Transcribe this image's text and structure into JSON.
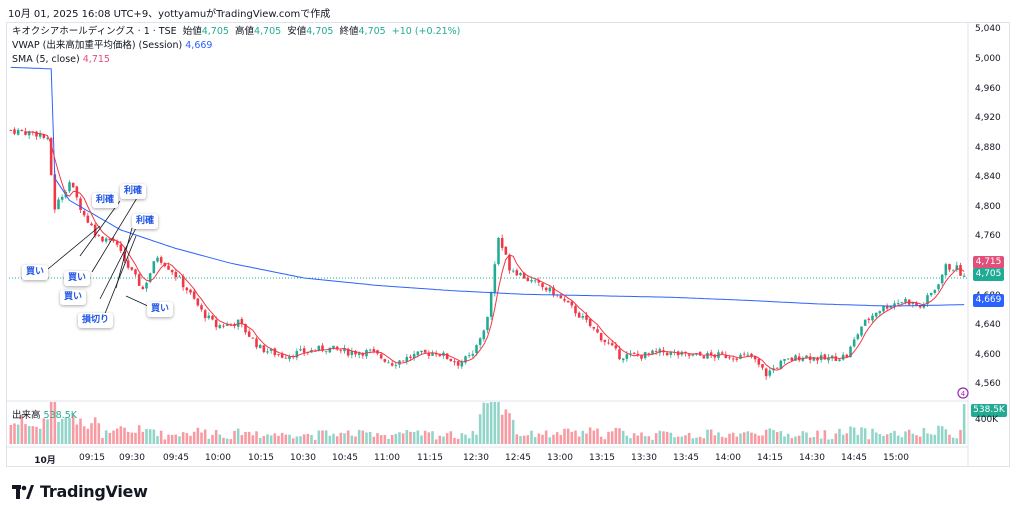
{
  "caption": "10月 01, 2025 16:08 UTC+9、yottyamuがTradingView.comで作成",
  "legend": {
    "symbol": "キオクシアホールディングス · 1 · TSE",
    "open_label": "始値",
    "open": "4,705",
    "high_label": "高値",
    "high": "4,705",
    "low_label": "安値",
    "low": "4,705",
    "close_label": "終値",
    "close": "4,705",
    "change": "+10 (+0.21%)",
    "vwap_label": "VWAP (出来高加重平均価格) (Session)",
    "vwap_value": "4,669",
    "sma_label": "SMA (5, close)",
    "sma_value": "4,715"
  },
  "volume_legend": {
    "label": "出来高",
    "value": "538.5K"
  },
  "colors": {
    "up": "#22ab94",
    "down": "#f23645",
    "vwap": "#2962ff",
    "sma": "#f23645",
    "sma_tag": "#e0507a",
    "last": "#22ab94",
    "vwap_tag": "#2962ff"
  },
  "brand": {
    "name": "TradingView"
  },
  "annotations": [
    "買い",
    "利確",
    "買い",
    "利確",
    "買い",
    "利確",
    "損切り",
    "買い"
  ],
  "chart_data": {
    "type": "candlestick",
    "ylim": [
      4540,
      5050
    ],
    "y_ticks": [
      "5,040",
      "5,000",
      "4,960",
      "4,920",
      "4,880",
      "4,840",
      "4,800",
      "4,760",
      "4,720",
      "4,680",
      "4,640",
      "4,600",
      "4,560"
    ],
    "y_tick_values": [
      5040,
      5000,
      4960,
      4920,
      4880,
      4840,
      4800,
      4760,
      4720,
      4680,
      4640,
      4600,
      4560
    ],
    "x_ticks": [
      "10月",
      "09:15",
      "09:30",
      "09:45",
      "10:00",
      "10:15",
      "10:30",
      "10:45",
      "11:00",
      "11:15",
      "12:30",
      "12:45",
      "13:00",
      "13:15",
      "13:30",
      "13:45",
      "14:00",
      "14:15",
      "14:30",
      "14:45",
      "15:00"
    ],
    "price_labels": {
      "sma": "4,715",
      "last": "4,705",
      "vwap": "4,669",
      "volume": "538.5K",
      "volume_axis": "400K"
    },
    "series_close_keypoints": [
      [
        0,
        4905
      ],
      [
        8,
        4900
      ],
      [
        10,
        4890
      ],
      [
        12,
        4800
      ],
      [
        16,
        4835
      ],
      [
        20,
        4790
      ],
      [
        24,
        4760
      ],
      [
        28,
        4755
      ],
      [
        32,
        4720
      ],
      [
        36,
        4690
      ],
      [
        40,
        4735
      ],
      [
        44,
        4715
      ],
      [
        48,
        4690
      ],
      [
        52,
        4660
      ],
      [
        56,
        4640
      ],
      [
        62,
        4645
      ],
      [
        68,
        4610
      ],
      [
        74,
        4600
      ],
      [
        80,
        4605
      ],
      [
        86,
        4610
      ],
      [
        92,
        4605
      ],
      [
        98,
        4605
      ],
      [
        104,
        4590
      ],
      [
        110,
        4600
      ],
      [
        116,
        4605
      ],
      [
        122,
        4590
      ],
      [
        126,
        4600
      ],
      [
        130,
        4650
      ],
      [
        133,
        4760
      ],
      [
        136,
        4720
      ],
      [
        142,
        4700
      ],
      [
        148,
        4685
      ],
      [
        154,
        4660
      ],
      [
        160,
        4630
      ],
      [
        166,
        4600
      ],
      [
        172,
        4600
      ],
      [
        178,
        4605
      ],
      [
        184,
        4600
      ],
      [
        190,
        4600
      ],
      [
        196,
        4600
      ],
      [
        202,
        4598
      ],
      [
        206,
        4575
      ],
      [
        210,
        4590
      ],
      [
        216,
        4600
      ],
      [
        222,
        4595
      ],
      [
        228,
        4600
      ],
      [
        232,
        4640
      ],
      [
        236,
        4660
      ],
      [
        240,
        4670
      ],
      [
        244,
        4675
      ],
      [
        248,
        4665
      ],
      [
        252,
        4690
      ],
      [
        255,
        4720
      ],
      [
        258,
        4718
      ],
      [
        260,
        4705
      ]
    ],
    "vwap_keypoints": [
      [
        0,
        4990
      ],
      [
        11,
        4988
      ],
      [
        12,
        4840
      ],
      [
        16,
        4810
      ],
      [
        30,
        4770
      ],
      [
        45,
        4745
      ],
      [
        60,
        4725
      ],
      [
        80,
        4705
      ],
      [
        100,
        4695
      ],
      [
        120,
        4688
      ],
      [
        140,
        4683
      ],
      [
        160,
        4681
      ],
      [
        180,
        4679
      ],
      [
        200,
        4675
      ],
      [
        220,
        4670
      ],
      [
        240,
        4667
      ],
      [
        260,
        4669
      ]
    ]
  }
}
